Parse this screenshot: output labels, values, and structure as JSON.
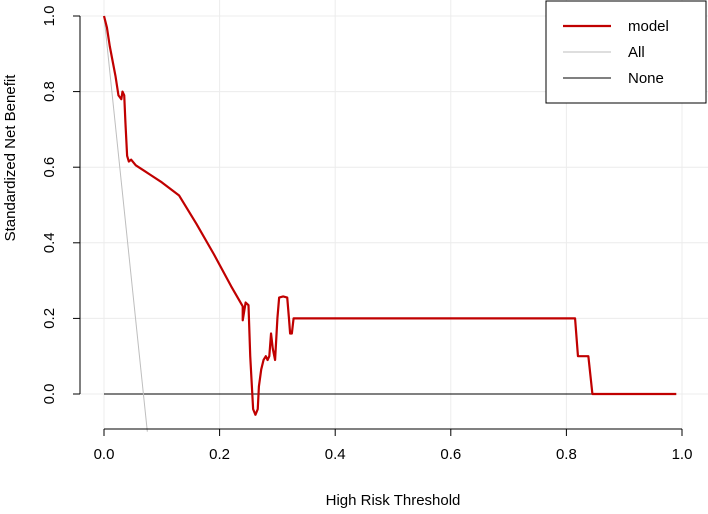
{
  "chart_data": {
    "type": "line",
    "title": "",
    "xlabel": "High Risk Threshold",
    "ylabel": "Standardized Net Benefit",
    "xlim": [
      0,
      1
    ],
    "ylim": [
      -0.1,
      1.0
    ],
    "x_ticks": [
      "0.0",
      "0.2",
      "0.4",
      "0.6",
      "0.8",
      "1.0"
    ],
    "y_ticks": [
      "0.0",
      "0.2",
      "0.4",
      "0.6",
      "0.8",
      "1.0"
    ],
    "grid": true,
    "legend_position": "top-right",
    "series": [
      {
        "name": "model",
        "color": "#c00000",
        "points": [
          [
            0.0,
            1.0
          ],
          [
            0.005,
            0.97
          ],
          [
            0.01,
            0.92
          ],
          [
            0.015,
            0.88
          ],
          [
            0.02,
            0.84
          ],
          [
            0.025,
            0.79
          ],
          [
            0.03,
            0.78
          ],
          [
            0.032,
            0.8
          ],
          [
            0.035,
            0.79
          ],
          [
            0.037,
            0.72
          ],
          [
            0.04,
            0.63
          ],
          [
            0.043,
            0.615
          ],
          [
            0.047,
            0.62
          ],
          [
            0.055,
            0.605
          ],
          [
            0.07,
            0.59
          ],
          [
            0.08,
            0.58
          ],
          [
            0.1,
            0.56
          ],
          [
            0.13,
            0.525
          ],
          [
            0.16,
            0.45
          ],
          [
            0.19,
            0.37
          ],
          [
            0.22,
            0.285
          ],
          [
            0.24,
            0.232
          ],
          [
            0.24,
            0.195
          ],
          [
            0.245,
            0.242
          ],
          [
            0.25,
            0.235
          ],
          [
            0.253,
            0.1
          ],
          [
            0.258,
            -0.04
          ],
          [
            0.262,
            -0.055
          ],
          [
            0.266,
            -0.04
          ],
          [
            0.268,
            0.02
          ],
          [
            0.272,
            0.065
          ],
          [
            0.276,
            0.09
          ],
          [
            0.28,
            0.1
          ],
          [
            0.283,
            0.09
          ],
          [
            0.286,
            0.1
          ],
          [
            0.289,
            0.16
          ],
          [
            0.292,
            0.12
          ],
          [
            0.296,
            0.09
          ],
          [
            0.3,
            0.2
          ],
          [
            0.303,
            0.255
          ],
          [
            0.31,
            0.258
          ],
          [
            0.317,
            0.255
          ],
          [
            0.32,
            0.2
          ],
          [
            0.322,
            0.16
          ],
          [
            0.325,
            0.16
          ],
          [
            0.328,
            0.2
          ],
          [
            0.33,
            0.2
          ],
          [
            0.815,
            0.2
          ],
          [
            0.82,
            0.1
          ],
          [
            0.838,
            0.1
          ],
          [
            0.845,
            0.0
          ],
          [
            0.99,
            0.0
          ]
        ]
      },
      {
        "name": "All",
        "color": "#bebebe",
        "points": [
          [
            0.0,
            1.0
          ],
          [
            0.075,
            -0.1
          ]
        ]
      },
      {
        "name": "None",
        "color": "#000000",
        "points": [
          [
            0.0,
            0.0
          ],
          [
            0.99,
            0.0
          ]
        ]
      }
    ]
  }
}
